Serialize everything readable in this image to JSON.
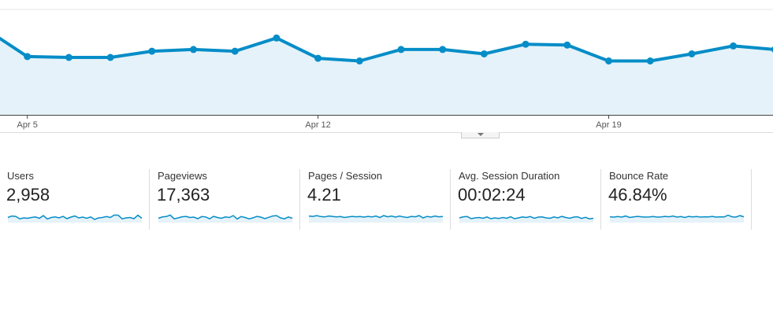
{
  "colors": {
    "line": "#058dc7",
    "area_fill": "#e5f2f9",
    "gridline": "#e6e6e6",
    "axis": "#444444",
    "divider": "#dddddd"
  },
  "chart_data": {
    "type": "area",
    "x": [
      "Apr 4",
      "Apr 5",
      "Apr 6",
      "Apr 7",
      "Apr 8",
      "Apr 9",
      "Apr 10",
      "Apr 11",
      "Apr 12",
      "Apr 13",
      "Apr 14",
      "Apr 15",
      "Apr 16",
      "Apr 17",
      "Apr 18",
      "Apr 19",
      "Apr 20",
      "Apr 21",
      "Apr 22",
      "Apr 23"
    ],
    "values": [
      97,
      66,
      65,
      65,
      72,
      74,
      72,
      87,
      64,
      61,
      74,
      74,
      69,
      80,
      79,
      61,
      61,
      69,
      78,
      74
    ],
    "x_tick_labels": [
      {
        "label": "Apr 5",
        "at": "Apr 5"
      },
      {
        "label": "Apr 12",
        "at": "Apr 12"
      },
      {
        "label": "Apr 19",
        "at": "Apr 19"
      }
    ],
    "ylim": [
      0,
      130
    ],
    "grid": true,
    "title": "",
    "xlabel": "",
    "ylabel": ""
  },
  "toggle": {
    "icon": "caret-down-icon"
  },
  "metrics": [
    {
      "label": "Users",
      "value": "2,958",
      "spark": [
        52,
        60,
        58,
        45,
        50,
        48,
        52,
        55,
        48,
        62,
        44,
        52,
        55,
        50,
        58,
        46,
        54,
        60,
        50,
        54,
        48,
        55,
        42,
        50,
        52,
        57,
        52,
        65,
        64,
        45,
        50,
        52,
        46,
        64,
        48
      ]
    },
    {
      "label": "Pageviews",
      "value": "17,363",
      "spark": [
        48,
        55,
        57,
        65,
        45,
        50,
        56,
        58,
        52,
        54,
        46,
        57,
        55,
        45,
        58,
        52,
        48,
        55,
        52,
        62,
        44,
        57,
        52,
        45,
        50,
        58,
        54,
        46,
        53,
        60,
        62,
        50,
        45,
        55,
        48
      ]
    },
    {
      "label": "Pages / Session",
      "value": "4.21",
      "spark": [
        60,
        58,
        62,
        57,
        55,
        60,
        58,
        55,
        57,
        52,
        55,
        58,
        56,
        57,
        54,
        58,
        55,
        60,
        52,
        62,
        56,
        60,
        54,
        60,
        55,
        52,
        58,
        56,
        62,
        50,
        58,
        54,
        60,
        56,
        57
      ]
    },
    {
      "label": "Avg. Session Duration",
      "value": "00:02:24",
      "spark": [
        50,
        56,
        57,
        46,
        50,
        52,
        48,
        55,
        46,
        50,
        47,
        52,
        48,
        56,
        46,
        50,
        55,
        52,
        57,
        48,
        54,
        55,
        50,
        48,
        55,
        50,
        58,
        52,
        48,
        54,
        56,
        47,
        53,
        45,
        48
      ]
    },
    {
      "label": "Bounce Rate",
      "value": "46.84%",
      "spark": [
        56,
        54,
        57,
        54,
        60,
        52,
        55,
        58,
        56,
        54,
        55,
        57,
        54,
        55,
        58,
        56,
        60,
        54,
        57,
        52,
        58,
        55,
        57,
        54,
        56,
        55,
        58,
        54,
        56,
        55,
        64,
        56,
        54,
        62,
        56
      ]
    }
  ]
}
